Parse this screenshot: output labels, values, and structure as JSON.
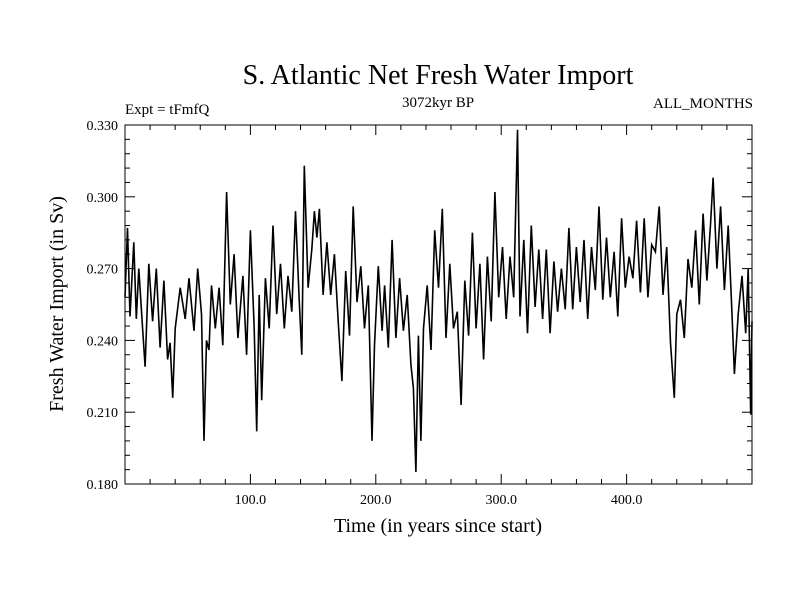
{
  "chart_data": {
    "type": "line",
    "title": "S. Atlantic Net Fresh Water Import",
    "subtitle_left": "Expt = tFmfQ",
    "subtitle_center": "3072kyr BP",
    "subtitle_right": "ALL_MONTHS",
    "xlabel": "Time (in years since start)",
    "ylabel": "Fresh Water Import (in Sv)",
    "xlim": [
      0,
      500
    ],
    "ylim": [
      0.18,
      0.33
    ],
    "xticks": [
      100,
      200,
      300,
      400
    ],
    "xtick_labels": [
      "100.0",
      "200.0",
      "300.0",
      "400.0"
    ],
    "yticks": [
      0.18,
      0.21,
      0.24,
      0.27,
      0.3,
      0.33
    ],
    "ytick_labels": [
      "0.180",
      "0.210",
      "0.240",
      "0.270",
      "0.300",
      "0.330"
    ],
    "series": [
      {
        "name": "Net Fresh Water Import",
        "color": "#000000",
        "keypoints": [
          [
            0,
            0.258
          ],
          [
            2,
            0.287
          ],
          [
            4,
            0.25
          ],
          [
            7,
            0.281
          ],
          [
            9,
            0.249
          ],
          [
            11,
            0.27
          ],
          [
            14,
            0.245
          ],
          [
            16,
            0.229
          ],
          [
            19,
            0.272
          ],
          [
            22,
            0.248
          ],
          [
            25,
            0.27
          ],
          [
            28,
            0.237
          ],
          [
            31,
            0.265
          ],
          [
            34,
            0.232
          ],
          [
            36,
            0.239
          ],
          [
            38,
            0.216
          ],
          [
            40,
            0.245
          ],
          [
            44,
            0.262
          ],
          [
            48,
            0.249
          ],
          [
            51,
            0.266
          ],
          [
            55,
            0.244
          ],
          [
            58,
            0.27
          ],
          [
            61,
            0.251
          ],
          [
            63,
            0.198
          ],
          [
            65,
            0.24
          ],
          [
            67,
            0.236
          ],
          [
            69,
            0.263
          ],
          [
            72,
            0.245
          ],
          [
            75,
            0.262
          ],
          [
            78,
            0.238
          ],
          [
            81,
            0.302
          ],
          [
            84,
            0.255
          ],
          [
            87,
            0.276
          ],
          [
            90,
            0.241
          ],
          [
            94,
            0.267
          ],
          [
            97,
            0.234
          ],
          [
            100,
            0.286
          ],
          [
            103,
            0.245
          ],
          [
            105,
            0.202
          ],
          [
            107,
            0.259
          ],
          [
            109,
            0.215
          ],
          [
            112,
            0.266
          ],
          [
            115,
            0.245
          ],
          [
            118,
            0.288
          ],
          [
            121,
            0.251
          ],
          [
            124,
            0.272
          ],
          [
            127,
            0.245
          ],
          [
            130,
            0.267
          ],
          [
            133,
            0.252
          ],
          [
            136,
            0.294
          ],
          [
            139,
            0.256
          ],
          [
            141,
            0.234
          ],
          [
            143,
            0.313
          ],
          [
            146,
            0.262
          ],
          [
            149,
            0.278
          ],
          [
            151,
            0.294
          ],
          [
            153,
            0.283
          ],
          [
            155,
            0.295
          ],
          [
            158,
            0.259
          ],
          [
            161,
            0.281
          ],
          [
            164,
            0.259
          ],
          [
            167,
            0.276
          ],
          [
            170,
            0.248
          ],
          [
            173,
            0.223
          ],
          [
            176,
            0.269
          ],
          [
            179,
            0.242
          ],
          [
            182,
            0.296
          ],
          [
            185,
            0.256
          ],
          [
            188,
            0.271
          ],
          [
            191,
            0.245
          ],
          [
            194,
            0.263
          ],
          [
            197,
            0.198
          ],
          [
            199,
            0.238
          ],
          [
            202,
            0.271
          ],
          [
            205,
            0.244
          ],
          [
            207,
            0.263
          ],
          [
            210,
            0.237
          ],
          [
            213,
            0.282
          ],
          [
            216,
            0.241
          ],
          [
            219,
            0.266
          ],
          [
            222,
            0.244
          ],
          [
            225,
            0.259
          ],
          [
            228,
            0.23
          ],
          [
            230,
            0.22
          ],
          [
            232,
            0.185
          ],
          [
            234,
            0.242
          ],
          [
            236,
            0.198
          ],
          [
            238,
            0.245
          ],
          [
            241,
            0.263
          ],
          [
            244,
            0.236
          ],
          [
            247,
            0.286
          ],
          [
            250,
            0.262
          ],
          [
            253,
            0.295
          ],
          [
            256,
            0.241
          ],
          [
            259,
            0.272
          ],
          [
            262,
            0.245
          ],
          [
            265,
            0.252
          ],
          [
            268,
            0.213
          ],
          [
            271,
            0.265
          ],
          [
            274,
            0.242
          ],
          [
            277,
            0.285
          ],
          [
            280,
            0.245
          ],
          [
            283,
            0.272
          ],
          [
            286,
            0.232
          ],
          [
            289,
            0.275
          ],
          [
            292,
            0.248
          ],
          [
            295,
            0.302
          ],
          [
            298,
            0.258
          ],
          [
            301,
            0.279
          ],
          [
            304,
            0.249
          ],
          [
            307,
            0.275
          ],
          [
            310,
            0.258
          ],
          [
            313,
            0.328
          ],
          [
            315,
            0.25
          ],
          [
            318,
            0.282
          ],
          [
            321,
            0.243
          ],
          [
            324,
            0.288
          ],
          [
            327,
            0.254
          ],
          [
            330,
            0.278
          ],
          [
            333,
            0.249
          ],
          [
            336,
            0.278
          ],
          [
            339,
            0.243
          ],
          [
            342,
            0.273
          ],
          [
            345,
            0.252
          ],
          [
            348,
            0.27
          ],
          [
            351,
            0.253
          ],
          [
            354,
            0.287
          ],
          [
            357,
            0.253
          ],
          [
            360,
            0.279
          ],
          [
            363,
            0.256
          ],
          [
            366,
            0.282
          ],
          [
            369,
            0.249
          ],
          [
            372,
            0.279
          ],
          [
            375,
            0.261
          ],
          [
            378,
            0.296
          ],
          [
            381,
            0.257
          ],
          [
            384,
            0.283
          ],
          [
            387,
            0.258
          ],
          [
            390,
            0.277
          ],
          [
            393,
            0.25
          ],
          [
            396,
            0.291
          ],
          [
            399,
            0.262
          ],
          [
            402,
            0.275
          ],
          [
            405,
            0.266
          ],
          [
            408,
            0.29
          ],
          [
            411,
            0.26
          ],
          [
            414,
            0.291
          ],
          [
            417,
            0.258
          ],
          [
            420,
            0.28
          ],
          [
            423,
            0.277
          ],
          [
            426,
            0.296
          ],
          [
            429,
            0.259
          ],
          [
            432,
            0.279
          ],
          [
            435,
            0.239
          ],
          [
            438,
            0.216
          ],
          [
            440,
            0.251
          ],
          [
            443,
            0.257
          ],
          [
            446,
            0.241
          ],
          [
            449,
            0.274
          ],
          [
            452,
            0.262
          ],
          [
            455,
            0.286
          ],
          [
            458,
            0.255
          ],
          [
            461,
            0.293
          ],
          [
            464,
            0.265
          ],
          [
            467,
            0.289
          ],
          [
            469,
            0.308
          ],
          [
            472,
            0.27
          ],
          [
            475,
            0.296
          ],
          [
            478,
            0.261
          ],
          [
            481,
            0.288
          ],
          [
            484,
            0.252
          ],
          [
            486,
            0.226
          ],
          [
            489,
            0.251
          ],
          [
            492,
            0.267
          ],
          [
            495,
            0.243
          ],
          [
            497,
            0.27
          ],
          [
            499,
            0.209
          ],
          [
            500,
            0.248
          ]
        ]
      }
    ]
  }
}
